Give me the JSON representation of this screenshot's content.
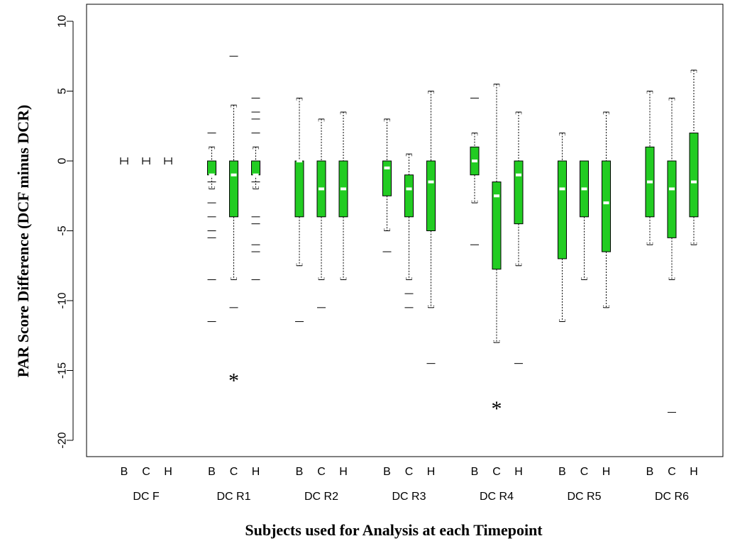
{
  "chart_data": {
    "type": "boxplot",
    "title": "",
    "xlabel": "Subjects used for Analysis at each Timepoint",
    "ylabel": "PAR Score Difference (DCF minus DCR)",
    "ylim": [
      -21.5,
      11
    ],
    "yticks": [
      -20,
      -15,
      -10,
      -5,
      0,
      5,
      10
    ],
    "grid": false,
    "box_color": "#22cc22",
    "median_color": "#ffffff",
    "groups": [
      {
        "label": "DC F",
        "boxes": [
          {
            "sub": "B",
            "whisker_low": 0,
            "q1": 0,
            "median": 0,
            "q3": 0,
            "whisker_high": 0,
            "outliers": []
          },
          {
            "sub": "C",
            "whisker_low": 0,
            "q1": 0,
            "median": 0,
            "q3": 0,
            "whisker_high": 0,
            "outliers": []
          },
          {
            "sub": "H",
            "whisker_low": 0,
            "q1": 0,
            "median": 0,
            "q3": 0,
            "whisker_high": 0,
            "outliers": []
          }
        ]
      },
      {
        "label": "DC R1",
        "boxes": [
          {
            "sub": "B",
            "whisker_low": -2,
            "q1": -1,
            "median": -1,
            "q3": 0,
            "whisker_high": 1,
            "outliers": [
              2,
              -1.5,
              -3,
              -4,
              -5,
              -5.5,
              -8.5,
              -11.5
            ]
          },
          {
            "sub": "C",
            "whisker_low": -8.5,
            "q1": -4,
            "median": -1,
            "q3": 0,
            "whisker_high": 4,
            "outliers": [
              7.5,
              -10.5
            ]
          },
          {
            "sub": "H",
            "whisker_low": -2,
            "q1": -1,
            "median": -1,
            "q3": 0,
            "whisker_high": 1,
            "outliers": [
              4.5,
              3.5,
              3,
              2,
              -1.5,
              -4,
              -4.5,
              -6,
              -6.5,
              -8.5
            ]
          }
        ]
      },
      {
        "label": "DC R2",
        "boxes": [
          {
            "sub": "B",
            "whisker_low": -7.5,
            "q1": -4,
            "median": 0,
            "q3": 0,
            "whisker_high": 4.5,
            "outliers": [
              -11.5
            ]
          },
          {
            "sub": "C",
            "whisker_low": -8.5,
            "q1": -4,
            "median": -2,
            "q3": 0,
            "whisker_high": 3,
            "outliers": [
              -10.5
            ]
          },
          {
            "sub": "H",
            "whisker_low": -8.5,
            "q1": -4,
            "median": -2,
            "q3": 0,
            "whisker_high": 3.5,
            "outliers": []
          }
        ]
      },
      {
        "label": "DC R3",
        "boxes": [
          {
            "sub": "B",
            "whisker_low": -5,
            "q1": -2.5,
            "median": -0.5,
            "q3": 0,
            "whisker_high": 3,
            "outliers": [
              -6.5
            ]
          },
          {
            "sub": "C",
            "whisker_low": -8.5,
            "q1": -4,
            "median": -2,
            "q3": -1,
            "whisker_high": 0.5,
            "outliers": [
              -9.5,
              -10.5
            ]
          },
          {
            "sub": "H",
            "whisker_low": -10.5,
            "q1": -5,
            "median": -1.5,
            "q3": 0,
            "whisker_high": 5,
            "outliers": [
              -14.5
            ]
          }
        ]
      },
      {
        "label": "DC R4",
        "boxes": [
          {
            "sub": "B",
            "whisker_low": -3,
            "q1": -1,
            "median": 0,
            "q3": 1,
            "whisker_high": 2,
            "outliers": [
              4.5,
              -6
            ]
          },
          {
            "sub": "C",
            "whisker_low": -13,
            "q1": -7.75,
            "median": -2.5,
            "q3": -1.5,
            "whisker_high": 5.5,
            "outliers": []
          },
          {
            "sub": "H",
            "whisker_low": -7.5,
            "q1": -4.5,
            "median": -1,
            "q3": 0,
            "whisker_high": 3.5,
            "outliers": [
              -14.5
            ]
          }
        ]
      },
      {
        "label": "DC R5",
        "boxes": [
          {
            "sub": "B",
            "whisker_low": -11.5,
            "q1": -7,
            "median": -2,
            "q3": 0,
            "whisker_high": 2,
            "outliers": []
          },
          {
            "sub": "C",
            "whisker_low": -8.5,
            "q1": -4,
            "median": -2,
            "q3": 0,
            "whisker_high": 0,
            "outliers": []
          },
          {
            "sub": "H",
            "whisker_low": -10.5,
            "q1": -6.5,
            "median": -3,
            "q3": 0,
            "whisker_high": 3.5,
            "outliers": []
          }
        ]
      },
      {
        "label": "DC R6",
        "boxes": [
          {
            "sub": "B",
            "whisker_low": -6,
            "q1": -4,
            "median": -1.5,
            "q3": 1,
            "whisker_high": 5,
            "outliers": []
          },
          {
            "sub": "C",
            "whisker_low": -8.5,
            "q1": -5.5,
            "median": -2,
            "q3": 0,
            "whisker_high": 4.5,
            "outliers": [
              -18
            ]
          },
          {
            "sub": "H",
            "whisker_low": -6,
            "q1": -4,
            "median": -1.5,
            "q3": 2,
            "whisker_high": 6.5,
            "outliers": []
          }
        ]
      }
    ],
    "annotations": [
      {
        "text": "*",
        "group": "DC R1",
        "sub": "C",
        "y": -15.5
      },
      {
        "text": "*",
        "group": "DC R4",
        "sub": "C",
        "y": -17.5
      }
    ]
  }
}
